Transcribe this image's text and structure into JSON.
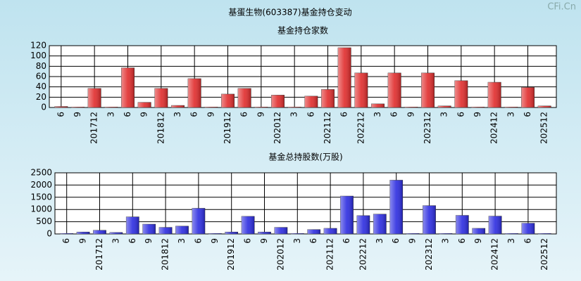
{
  "title": "基蛋生物(603387)基金持仓变动",
  "watermark": "CFi.Cn",
  "chart_data": [
    {
      "type": "bar",
      "title": "基金持仓家数",
      "color": "#e02c2c",
      "categories": [
        "6",
        "9",
        "201712",
        "3",
        "6",
        "9",
        "201812",
        "3",
        "6",
        "9",
        "201912",
        "6",
        "9",
        "202012",
        "3",
        "6",
        "202112",
        "6",
        "202212",
        "3",
        "6",
        "9",
        "202312",
        "3",
        "6",
        "9",
        "202412",
        "3",
        "6",
        "202512"
      ],
      "values": [
        2,
        1,
        37,
        1,
        77,
        10,
        37,
        4,
        56,
        1,
        26,
        37,
        1,
        24,
        1,
        22,
        35,
        116,
        67,
        7,
        67,
        1,
        67,
        3,
        52,
        1,
        49,
        1,
        39,
        3
      ],
      "ylim": [
        0,
        120
      ],
      "yticks": [
        0,
        20,
        40,
        60,
        80,
        100,
        120
      ],
      "grid": true
    },
    {
      "type": "bar",
      "title": "基金总持股数(万股)",
      "color": "#2c2ce0",
      "categories": [
        "6",
        "9",
        "201712",
        "3",
        "6",
        "9",
        "201812",
        "3",
        "6",
        "9",
        "201912",
        "6",
        "9",
        "202012",
        "3",
        "6",
        "202112",
        "6",
        "202212",
        "3",
        "6",
        "9",
        "202312",
        "3",
        "6",
        "9",
        "202412",
        "3",
        "6",
        "202512"
      ],
      "values": [
        20,
        80,
        150,
        60,
        700,
        400,
        270,
        320,
        1050,
        20,
        80,
        720,
        80,
        270,
        20,
        180,
        230,
        1550,
        750,
        810,
        2200,
        20,
        1160,
        20,
        760,
        230,
        730,
        20,
        440,
        20
      ],
      "ylim": [
        0,
        2500
      ],
      "yticks": [
        0,
        500,
        1000,
        1500,
        2000,
        2500
      ],
      "grid": true
    }
  ]
}
